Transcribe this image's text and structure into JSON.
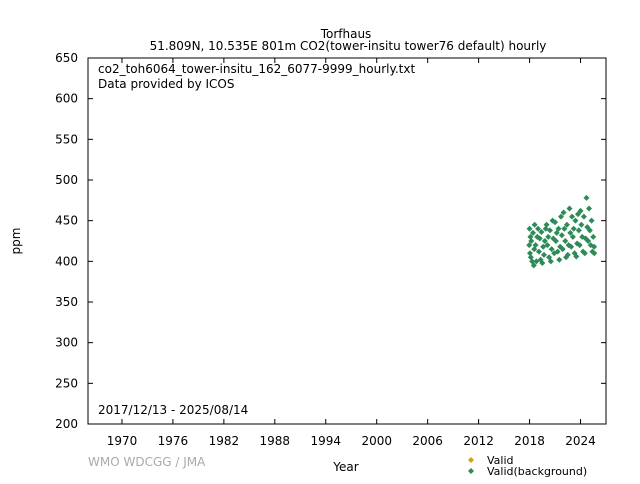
{
  "chart_data": {
    "type": "scatter",
    "title": "Torfhaus",
    "subtitle": "51.809N, 10.535E 801m    CO2(tower-insitu tower76 default) hourly",
    "xlabel": "Year",
    "ylabel": "ppm",
    "xlim": [
      1966,
      2027
    ],
    "ylim": [
      200,
      650
    ],
    "xticks": [
      1970,
      1976,
      1982,
      1988,
      1994,
      2000,
      2006,
      2012,
      2018,
      2024
    ],
    "yticks": [
      200,
      250,
      300,
      350,
      400,
      450,
      500,
      550,
      600,
      650
    ],
    "annotations": {
      "filename": "co2_toh6064_tower-insitu_162_6077-9999_hourly.txt",
      "provider": "Data provided by ICOS",
      "date_range": "2017/12/13 - 2025/08/14",
      "credit": "WMO WDCGG / JMA"
    },
    "legend": {
      "placement": "bottom-right",
      "entries": [
        {
          "label": "Valid",
          "color": "#d4a017"
        },
        {
          "label": "Valid(background)",
          "color": "#2e8b57"
        }
      ]
    },
    "series": [
      {
        "name": "Valid(background)",
        "color": "#2e8b57",
        "points": [
          [
            2017.96,
            420
          ],
          [
            2018.0,
            440
          ],
          [
            2018.05,
            410
          ],
          [
            2018.1,
            430
          ],
          [
            2018.15,
            405
          ],
          [
            2018.2,
            425
          ],
          [
            2018.3,
            400
          ],
          [
            2018.4,
            435
          ],
          [
            2018.5,
            395
          ],
          [
            2018.55,
            415
          ],
          [
            2018.6,
            445
          ],
          [
            2018.7,
            420
          ],
          [
            2018.8,
            400
          ],
          [
            2018.9,
            430
          ],
          [
            2019.0,
            440
          ],
          [
            2019.1,
            412
          ],
          [
            2019.2,
            428
          ],
          [
            2019.3,
            402
          ],
          [
            2019.4,
            436
          ],
          [
            2019.5,
            398
          ],
          [
            2019.6,
            418
          ],
          [
            2019.7,
            408
          ],
          [
            2019.8,
            425
          ],
          [
            2019.9,
            440
          ],
          [
            2020.0,
            445
          ],
          [
            2020.1,
            420
          ],
          [
            2020.2,
            430
          ],
          [
            2020.3,
            405
          ],
          [
            2020.4,
            438
          ],
          [
            2020.5,
            400
          ],
          [
            2020.6,
            415
          ],
          [
            2020.7,
            450
          ],
          [
            2020.8,
            428
          ],
          [
            2020.9,
            410
          ],
          [
            2021.0,
            448
          ],
          [
            2021.1,
            425
          ],
          [
            2021.2,
            435
          ],
          [
            2021.3,
            412
          ],
          [
            2021.4,
            440
          ],
          [
            2021.5,
            402
          ],
          [
            2021.6,
            418
          ],
          [
            2021.7,
            455
          ],
          [
            2021.8,
            432
          ],
          [
            2021.9,
            415
          ],
          [
            2022.0,
            460
          ],
          [
            2022.1,
            440
          ],
          [
            2022.2,
            425
          ],
          [
            2022.3,
            405
          ],
          [
            2022.4,
            445
          ],
          [
            2022.5,
            408
          ],
          [
            2022.6,
            420
          ],
          [
            2022.7,
            465
          ],
          [
            2022.8,
            435
          ],
          [
            2022.9,
            418
          ],
          [
            2023.0,
            455
          ],
          [
            2023.1,
            430
          ],
          [
            2023.2,
            440
          ],
          [
            2023.3,
            410
          ],
          [
            2023.4,
            450
          ],
          [
            2023.5,
            406
          ],
          [
            2023.6,
            422
          ],
          [
            2023.7,
            458
          ],
          [
            2023.8,
            438
          ],
          [
            2023.9,
            420
          ],
          [
            2024.0,
            462
          ],
          [
            2024.1,
            445
          ],
          [
            2024.2,
            430
          ],
          [
            2024.3,
            412
          ],
          [
            2024.4,
            455
          ],
          [
            2024.5,
            410
          ],
          [
            2024.6,
            428
          ],
          [
            2024.7,
            478
          ],
          [
            2024.8,
            442
          ],
          [
            2024.9,
            425
          ],
          [
            2025.0,
            465
          ],
          [
            2025.1,
            438
          ],
          [
            2025.2,
            420
          ],
          [
            2025.3,
            450
          ],
          [
            2025.4,
            412
          ],
          [
            2025.5,
            430
          ],
          [
            2025.6,
            418
          ],
          [
            2025.62,
            410
          ]
        ]
      }
    ]
  }
}
